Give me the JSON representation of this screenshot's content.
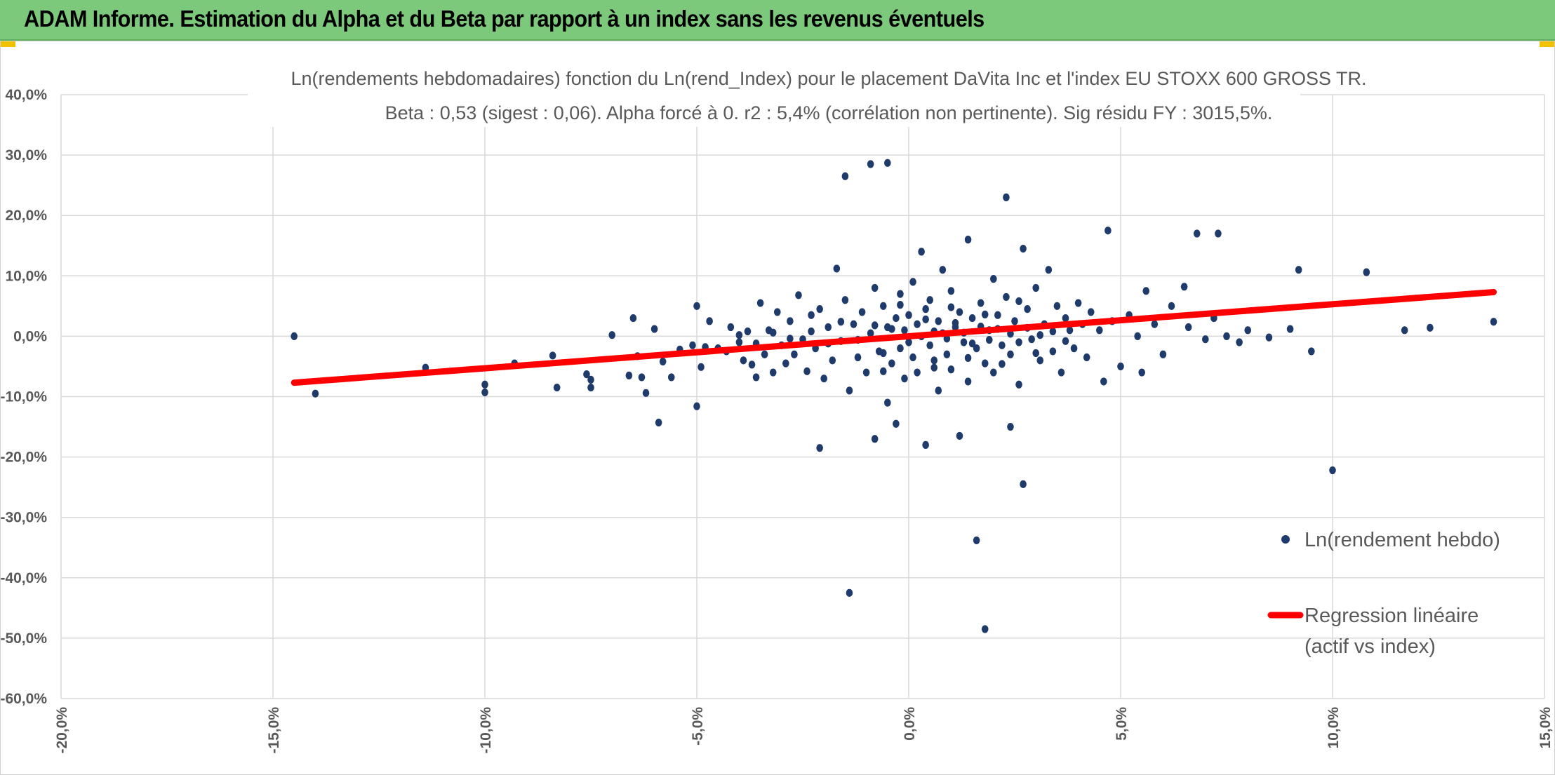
{
  "header": {
    "title": "ADAM Informe. Estimation du Alpha et du Beta par rapport à un index sans les revenus éventuels"
  },
  "colors": {
    "banner": "#7dc97c",
    "points": "#1f3b6b",
    "regression": "#ff0000",
    "grid": "#d9d9d9"
  },
  "chart_data": {
    "type": "scatter",
    "title_line1": "Ln(rendements hebdomadaires) fonction du Ln(rend_Index) pour le placement DaVita Inc et l'index EU STOXX 600 GROSS TR.",
    "title_line2": "Beta : 0,53 (sigest : 0,06). Alpha forcé à 0. r2 : 5,4% (corrélation non pertinente). Sig résidu FY : 3015,5%.",
    "xlim": [
      -0.2,
      0.15
    ],
    "ylim": [
      -0.6,
      0.4
    ],
    "x_ticks": [
      -0.2,
      -0.15,
      -0.1,
      -0.05,
      0.0,
      0.05,
      0.1,
      0.15
    ],
    "x_tick_labels": [
      "-20,0%",
      "-15,0%",
      "-10,0%",
      "-5,0%",
      "0,0%",
      "5,0%",
      "10,0%",
      "15,0%"
    ],
    "y_ticks": [
      0.4,
      0.3,
      0.2,
      0.1,
      0.0,
      -0.1,
      -0.2,
      -0.3,
      -0.4,
      -0.5,
      -0.6
    ],
    "y_tick_labels": [
      "40,0%",
      "30,0%",
      "20,0%",
      "10,0%",
      "0,0%",
      "-10,0%",
      "-20,0%",
      "-30,0%",
      "-40,0%",
      "-50,0%",
      "-60,0%"
    ],
    "grid": true,
    "legend_position": "right",
    "series": [
      {
        "name": "Ln(rendement hebdo)",
        "kind": "scatter",
        "points": [
          [
            -0.145,
            0.0
          ],
          [
            -0.14,
            -0.095
          ],
          [
            -0.114,
            -0.052
          ],
          [
            -0.1,
            -0.08
          ],
          [
            -0.1,
            -0.093
          ],
          [
            -0.093,
            -0.045
          ],
          [
            -0.084,
            -0.032
          ],
          [
            -0.083,
            -0.085
          ],
          [
            -0.076,
            -0.063
          ],
          [
            -0.075,
            -0.072
          ],
          [
            -0.075,
            -0.085
          ],
          [
            -0.07,
            0.002
          ],
          [
            -0.066,
            -0.065
          ],
          [
            -0.065,
            0.03
          ],
          [
            -0.064,
            -0.033
          ],
          [
            -0.063,
            -0.068
          ],
          [
            -0.062,
            -0.094
          ],
          [
            -0.06,
            0.012
          ],
          [
            -0.059,
            -0.143
          ],
          [
            -0.058,
            -0.042
          ],
          [
            -0.056,
            -0.068
          ],
          [
            -0.054,
            -0.022
          ],
          [
            -0.051,
            -0.015
          ],
          [
            -0.05,
            0.05
          ],
          [
            -0.05,
            -0.116
          ],
          [
            -0.049,
            -0.051
          ],
          [
            -0.048,
            -0.018
          ],
          [
            -0.047,
            0.025
          ],
          [
            -0.045,
            -0.02
          ],
          [
            -0.043,
            -0.025
          ],
          [
            -0.042,
            0.015
          ],
          [
            -0.04,
            -0.01
          ],
          [
            -0.039,
            -0.04
          ],
          [
            -0.038,
            0.008
          ],
          [
            -0.037,
            -0.047
          ],
          [
            -0.036,
            -0.068
          ],
          [
            -0.035,
            0.055
          ],
          [
            -0.034,
            -0.03
          ],
          [
            -0.033,
            0.01
          ],
          [
            -0.032,
            -0.06
          ],
          [
            -0.031,
            0.04
          ],
          [
            -0.03,
            -0.015
          ],
          [
            -0.029,
            -0.045
          ],
          [
            -0.028,
            0.025
          ],
          [
            -0.027,
            -0.03
          ],
          [
            -0.026,
            0.068
          ],
          [
            -0.025,
            -0.005
          ],
          [
            -0.024,
            -0.058
          ],
          [
            -0.023,
            0.035
          ],
          [
            -0.022,
            -0.02
          ],
          [
            -0.021,
            0.045
          ],
          [
            -0.021,
            -0.185
          ],
          [
            -0.02,
            -0.07
          ],
          [
            -0.019,
            0.015
          ],
          [
            -0.018,
            -0.04
          ],
          [
            -0.017,
            0.112
          ],
          [
            -0.016,
            -0.008
          ],
          [
            -0.015,
            0.06
          ],
          [
            -0.014,
            -0.09
          ],
          [
            -0.013,
            0.02
          ],
          [
            -0.012,
            -0.035
          ],
          [
            -0.011,
            0.04
          ],
          [
            -0.01,
            -0.06
          ],
          [
            -0.009,
            0.005
          ],
          [
            -0.008,
            0.08
          ],
          [
            -0.008,
            -0.17
          ],
          [
            -0.007,
            -0.025
          ],
          [
            -0.006,
            0.05
          ],
          [
            -0.005,
            -0.11
          ],
          [
            -0.005,
            0.015
          ],
          [
            -0.004,
            -0.045
          ],
          [
            -0.003,
            0.03
          ],
          [
            -0.003,
            -0.145
          ],
          [
            -0.002,
            0.07
          ],
          [
            -0.002,
            -0.02
          ],
          [
            -0.001,
            0.01
          ],
          [
            -0.001,
            -0.07
          ],
          [
            0.0,
            0.035
          ],
          [
            0.0,
            -0.01
          ],
          [
            0.001,
            0.09
          ],
          [
            0.001,
            -0.035
          ],
          [
            0.002,
            0.02
          ],
          [
            0.002,
            -0.06
          ],
          [
            0.003,
            0.14
          ],
          [
            0.003,
            0.0
          ],
          [
            0.004,
            -0.18
          ],
          [
            0.004,
            0.045
          ],
          [
            0.005,
            -0.015
          ],
          [
            0.005,
            0.06
          ],
          [
            0.006,
            -0.04
          ],
          [
            0.007,
            0.025
          ],
          [
            0.007,
            -0.09
          ],
          [
            0.008,
            0.11
          ],
          [
            0.008,
            0.005
          ],
          [
            0.009,
            -0.03
          ],
          [
            0.01,
            0.075
          ],
          [
            0.01,
            -0.055
          ],
          [
            0.011,
            0.015
          ],
          [
            0.012,
            -0.165
          ],
          [
            0.012,
            0.04
          ],
          [
            0.013,
            -0.01
          ],
          [
            0.014,
            0.16
          ],
          [
            0.014,
            -0.075
          ],
          [
            0.015,
            0.03
          ],
          [
            0.016,
            -0.02
          ],
          [
            0.016,
            -0.338
          ],
          [
            0.017,
            0.055
          ],
          [
            0.018,
            -0.045
          ],
          [
            0.018,
            -0.485
          ],
          [
            0.019,
            0.01
          ],
          [
            0.02,
            0.095
          ],
          [
            0.02,
            -0.06
          ],
          [
            0.021,
            0.035
          ],
          [
            0.022,
            -0.015
          ],
          [
            0.023,
            0.065
          ],
          [
            0.023,
            0.23
          ],
          [
            0.024,
            -0.15
          ],
          [
            0.024,
            -0.03
          ],
          [
            0.025,
            0.025
          ],
          [
            0.026,
            -0.08
          ],
          [
            0.027,
            0.145
          ],
          [
            0.027,
            -0.245
          ],
          [
            0.028,
            0.045
          ],
          [
            0.029,
            -0.005
          ],
          [
            0.03,
            0.08
          ],
          [
            0.031,
            -0.04
          ],
          [
            0.032,
            0.02
          ],
          [
            0.033,
            0.11
          ],
          [
            0.034,
            -0.025
          ],
          [
            0.035,
            0.05
          ],
          [
            0.036,
            -0.06
          ],
          [
            0.037,
            0.03
          ],
          [
            0.038,
            0.01
          ],
          [
            0.039,
            -0.02
          ],
          [
            0.04,
            0.055
          ],
          [
            0.041,
            0.02
          ],
          [
            0.042,
            -0.035
          ],
          [
            0.043,
            0.04
          ],
          [
            0.045,
            0.01
          ],
          [
            0.046,
            -0.075
          ],
          [
            0.047,
            0.175
          ],
          [
            0.048,
            0.025
          ],
          [
            0.05,
            -0.05
          ],
          [
            0.052,
            0.035
          ],
          [
            0.054,
            0.0
          ],
          [
            0.055,
            -0.06
          ],
          [
            0.056,
            0.075
          ],
          [
            0.058,
            0.02
          ],
          [
            0.06,
            -0.03
          ],
          [
            0.062,
            0.05
          ],
          [
            0.065,
            0.082
          ],
          [
            0.066,
            0.015
          ],
          [
            0.068,
            0.17
          ],
          [
            0.07,
            -0.005
          ],
          [
            0.072,
            0.03
          ],
          [
            0.073,
            0.17
          ],
          [
            0.075,
            0.0
          ],
          [
            0.078,
            -0.01
          ],
          [
            0.08,
            0.01
          ],
          [
            0.085,
            -0.002
          ],
          [
            0.09,
            0.012
          ],
          [
            0.092,
            0.11
          ],
          [
            0.095,
            -0.025
          ],
          [
            0.1,
            -0.222
          ],
          [
            0.108,
            0.106
          ],
          [
            0.117,
            0.01
          ],
          [
            0.123,
            0.014
          ],
          [
            0.138,
            0.024
          ],
          [
            -0.015,
            0.265
          ],
          [
            -0.009,
            0.285
          ],
          [
            -0.005,
            0.287
          ],
          [
            -0.014,
            -0.425
          ],
          [
            -0.023,
            0.008
          ],
          [
            -0.019,
            -0.012
          ],
          [
            -0.016,
            0.024
          ],
          [
            -0.012,
            -0.006
          ],
          [
            -0.008,
            0.018
          ],
          [
            -0.006,
            -0.028
          ],
          [
            -0.004,
            0.012
          ],
          [
            0.006,
            0.008
          ],
          [
            0.009,
            -0.004
          ],
          [
            0.011,
            0.022
          ],
          [
            0.013,
            0.006
          ],
          [
            0.015,
            -0.012
          ],
          [
            0.017,
            0.016
          ],
          [
            0.019,
            -0.006
          ],
          [
            0.021,
            0.012
          ],
          [
            0.024,
            0.004
          ],
          [
            0.026,
            -0.01
          ],
          [
            0.028,
            0.014
          ],
          [
            0.031,
            0.002
          ],
          [
            0.034,
            0.008
          ],
          [
            0.037,
            -0.008
          ],
          [
            -0.028,
            -0.004
          ],
          [
            -0.032,
            0.006
          ],
          [
            -0.036,
            -0.012
          ],
          [
            -0.04,
            0.002
          ],
          [
            0.004,
            0.028
          ],
          [
            0.006,
            -0.052
          ],
          [
            0.01,
            0.048
          ],
          [
            0.014,
            -0.036
          ],
          [
            0.018,
            0.036
          ],
          [
            0.022,
            -0.046
          ],
          [
            0.026,
            0.058
          ],
          [
            0.03,
            -0.028
          ],
          [
            -0.002,
            0.052
          ],
          [
            -0.006,
            -0.058
          ]
        ]
      },
      {
        "name": "Regression linéaire (actif vs index)",
        "legend_label_line1": "Regression linéaire",
        "legend_label_line2": "(actif vs index)",
        "kind": "line",
        "x": [
          -0.145,
          0.138
        ],
        "y": [
          -0.0769,
          0.0731
        ]
      }
    ]
  }
}
